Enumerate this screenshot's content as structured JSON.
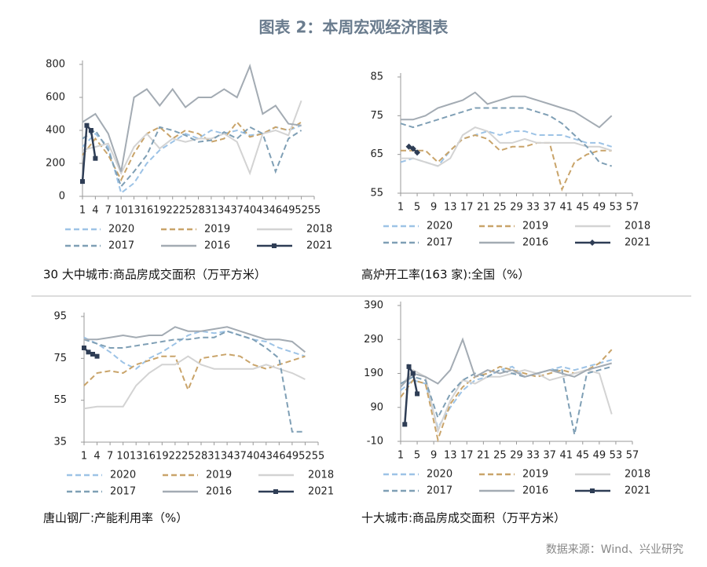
{
  "title": "图表 2：本周宏观经济图表",
  "source": "数据来源：Wind、兴业研究",
  "chart_data": [
    {
      "type": "line",
      "caption": "30 大中城市:商品房成交面积（万平方米）",
      "x": [
        1,
        4,
        7,
        10,
        13,
        16,
        19,
        22,
        25,
        28,
        31,
        34,
        37,
        40,
        43,
        46,
        49,
        52
      ],
      "xlim": [
        1,
        55
      ],
      "xticks": [
        1,
        4,
        7,
        10,
        13,
        16,
        19,
        22,
        25,
        28,
        31,
        34,
        37,
        40,
        43,
        46,
        49,
        52,
        55
      ],
      "ylim": [
        0,
        800
      ],
      "yticks": [
        0,
        200,
        400,
        600,
        800
      ],
      "series": [
        {
          "name": "2020",
          "color": "#9dc3e6",
          "dashed": true,
          "values": [
            300,
            380,
            300,
            20,
            80,
            200,
            280,
            330,
            380,
            350,
            400,
            380,
            400,
            370,
            380,
            420,
            400,
            430
          ]
        },
        {
          "name": "2019",
          "color": "#c9a46a",
          "dashed": true,
          "values": [
            250,
            350,
            250,
            100,
            260,
            380,
            420,
            350,
            400,
            380,
            330,
            350,
            450,
            360,
            380,
            420,
            400,
            450
          ]
        },
        {
          "name": "2018",
          "color": "#d3d3d3",
          "dashed": false,
          "values": [
            280,
            300,
            320,
            140,
            300,
            380,
            290,
            350,
            330,
            350,
            350,
            380,
            330,
            140,
            380,
            400,
            370,
            580
          ]
        },
        {
          "name": "2017",
          "color": "#7f9fb5",
          "dashed": true,
          "values": [
            350,
            400,
            280,
            60,
            150,
            250,
            420,
            400,
            370,
            330,
            340,
            390,
            350,
            420,
            380,
            150,
            350,
            400
          ]
        },
        {
          "name": "2016",
          "color": "#a3abb3",
          "dashed": false,
          "values": [
            450,
            500,
            380,
            150,
            600,
            650,
            550,
            650,
            540,
            600,
            600,
            650,
            600,
            790,
            500,
            550,
            440,
            430
          ]
        },
        {
          "name": "2021",
          "color": "#2e3d55",
          "dashed": false,
          "marker": "square",
          "x": [
            1,
            2,
            3,
            4
          ],
          "values": [
            90,
            430,
            400,
            230
          ]
        }
      ]
    },
    {
      "type": "line",
      "caption": "高炉开工率(163 家):全国（%）",
      "x": [
        1,
        4,
        7,
        10,
        13,
        16,
        19,
        22,
        25,
        28,
        31,
        34,
        37,
        40,
        43,
        46,
        49,
        52
      ],
      "xlim": [
        1,
        57
      ],
      "xticks": [
        1,
        5,
        9,
        13,
        17,
        21,
        25,
        29,
        33,
        37,
        41,
        45,
        49,
        53,
        57
      ],
      "ylim": [
        55,
        85
      ],
      "yticks": [
        55,
        65,
        75,
        85
      ],
      "series": [
        {
          "name": "2020",
          "color": "#9dc3e6",
          "dashed": true,
          "values": [
            63,
            64,
            63,
            62,
            66,
            69,
            70,
            71,
            70,
            71,
            71,
            70,
            70,
            70,
            69,
            68,
            68,
            67
          ]
        },
        {
          "name": "2019",
          "color": "#c9a46a",
          "dashed": true,
          "values": [
            66,
            66,
            66,
            63,
            66,
            69,
            70,
            69,
            66,
            67,
            67,
            68,
            68,
            56,
            63,
            65,
            66,
            66
          ]
        },
        {
          "name": "2018",
          "color": "#d3d3d3",
          "dashed": false,
          "values": [
            64,
            64,
            63,
            62,
            64,
            70,
            72,
            71,
            68,
            68,
            69,
            68,
            68,
            68,
            68,
            67,
            67,
            66
          ]
        },
        {
          "name": "2017",
          "color": "#7f9fb5",
          "dashed": true,
          "values": [
            73,
            72,
            73,
            74,
            75,
            76,
            77,
            77,
            77,
            77,
            77,
            76,
            75,
            73,
            70,
            67,
            63,
            62
          ]
        },
        {
          "name": "2016",
          "color": "#a3abb3",
          "dashed": false,
          "values": [
            74,
            74,
            75,
            77,
            78,
            79,
            81,
            78,
            79,
            80,
            80,
            79,
            78,
            77,
            76,
            74,
            72,
            75
          ]
        },
        {
          "name": "2021",
          "color": "#2e3d55",
          "dashed": false,
          "marker": "diamond",
          "x": [
            3,
            4,
            5
          ],
          "values": [
            67,
            66.5,
            65.5
          ]
        }
      ]
    },
    {
      "type": "line",
      "caption": "唐山钢厂:产能利用率（%）",
      "x": [
        1,
        4,
        7,
        10,
        13,
        16,
        19,
        22,
        25,
        28,
        31,
        34,
        37,
        40,
        43,
        46,
        49,
        52
      ],
      "xlim": [
        1,
        55
      ],
      "xticks": [
        1,
        4,
        7,
        10,
        13,
        16,
        19,
        22,
        25,
        28,
        31,
        34,
        37,
        40,
        43,
        46,
        49,
        52,
        55
      ],
      "ylim": [
        35,
        95
      ],
      "yticks": [
        35,
        55,
        75,
        95
      ],
      "series": [
        {
          "name": "2020",
          "color": "#9dc3e6",
          "dashed": true,
          "values": [
            85,
            82,
            78,
            73,
            70,
            75,
            78,
            82,
            86,
            88,
            87,
            88,
            86,
            84,
            83,
            80,
            78,
            76
          ]
        },
        {
          "name": "2019",
          "color": "#c9a46a",
          "dashed": true,
          "values": [
            62,
            68,
            69,
            68,
            72,
            74,
            76,
            76,
            60,
            75,
            76,
            77,
            76,
            72,
            70,
            72,
            74,
            76
          ]
        },
        {
          "name": "2018",
          "color": "#d3d3d3",
          "dashed": false,
          "values": [
            51,
            52,
            52,
            52,
            62,
            68,
            72,
            72,
            76,
            72,
            70,
            70,
            70,
            70,
            72,
            70,
            68,
            65
          ]
        },
        {
          "name": "2017",
          "color": "#7f9fb5",
          "dashed": true,
          "values": [
            84,
            82,
            80,
            80,
            81,
            82,
            83,
            84,
            84,
            85,
            85,
            88,
            86,
            84,
            80,
            75,
            40,
            40
          ]
        },
        {
          "name": "2016",
          "color": "#a3abb3",
          "dashed": false,
          "values": [
            84,
            84,
            85,
            86,
            85,
            86,
            86,
            90,
            88,
            88,
            89,
            90,
            88,
            86,
            84,
            84,
            83,
            78
          ]
        },
        {
          "name": "2021",
          "color": "#2e3d55",
          "dashed": false,
          "marker": "square",
          "x": [
            1,
            2,
            3,
            4
          ],
          "values": [
            80,
            78,
            77,
            76
          ]
        }
      ]
    },
    {
      "type": "line",
      "caption": "十大城市:商品房成交面积（万平方米）",
      "x": [
        1,
        4,
        7,
        10,
        13,
        16,
        19,
        22,
        25,
        28,
        31,
        34,
        37,
        40,
        43,
        46,
        49,
        52
      ],
      "xlim": [
        1,
        57
      ],
      "xticks": [
        1,
        5,
        9,
        13,
        17,
        21,
        25,
        29,
        33,
        37,
        41,
        45,
        49,
        53,
        57
      ],
      "ylim": [
        -10,
        390
      ],
      "yticks": [
        -10,
        90,
        190,
        290,
        390
      ],
      "series": [
        {
          "name": "2020",
          "color": "#9dc3e6",
          "dashed": true,
          "values": [
            140,
            170,
            160,
            30,
            90,
            140,
            170,
            180,
            200,
            210,
            180,
            190,
            200,
            210,
            200,
            210,
            220,
            230
          ]
        },
        {
          "name": "2019",
          "color": "#c9a46a",
          "dashed": true,
          "values": [
            120,
            170,
            160,
            -5,
            100,
            150,
            180,
            190,
            210,
            200,
            190,
            180,
            190,
            200,
            190,
            200,
            220,
            260
          ]
        },
        {
          "name": "2018",
          "color": "#d3d3d3",
          "dashed": false,
          "values": [
            150,
            200,
            180,
            20,
            110,
            170,
            160,
            180,
            180,
            190,
            200,
            190,
            170,
            180,
            190,
            200,
            190,
            70
          ]
        },
        {
          "name": "2017",
          "color": "#7f9fb5",
          "dashed": true,
          "values": [
            160,
            180,
            170,
            60,
            130,
            170,
            190,
            180,
            200,
            190,
            180,
            190,
            200,
            200,
            10,
            190,
            200,
            210
          ]
        },
        {
          "name": "2016",
          "color": "#a3abb3",
          "dashed": false,
          "values": [
            150,
            190,
            180,
            160,
            200,
            290,
            180,
            200,
            190,
            200,
            180,
            190,
            200,
            190,
            180,
            200,
            210,
            220
          ]
        },
        {
          "name": "2021",
          "color": "#2e3d55",
          "dashed": false,
          "marker": "square",
          "x": [
            2,
            3,
            4,
            5
          ],
          "values": [
            40,
            210,
            190,
            130
          ]
        }
      ]
    }
  ]
}
